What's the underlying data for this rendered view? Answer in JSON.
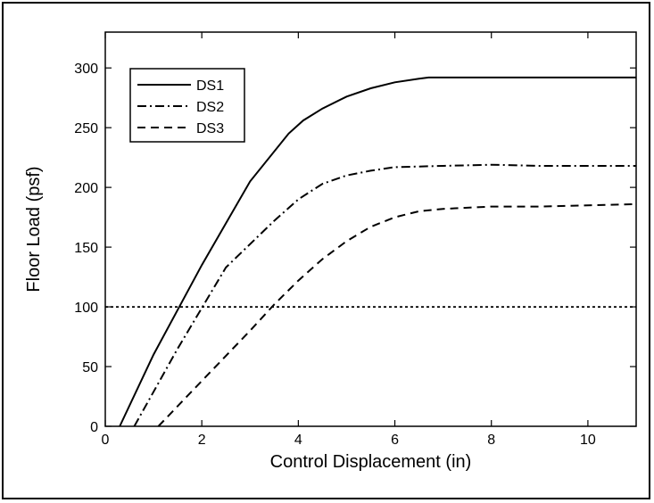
{
  "chart_data": {
    "type": "line",
    "title": "",
    "xlabel": "Control Displacement (in)",
    "ylabel": "Floor Load (psf)",
    "xlim": [
      0,
      11
    ],
    "ylim": [
      0,
      330
    ],
    "xticks": [
      0,
      2,
      4,
      6,
      8,
      10
    ],
    "yticks": [
      0,
      50,
      100,
      150,
      200,
      250,
      300
    ],
    "grid": false,
    "legend_position": "top-left",
    "series": [
      {
        "name": "DS1",
        "style": "solid",
        "color": "#000000",
        "x": [
          0.3,
          1.0,
          2.0,
          3.0,
          3.8,
          4.1,
          4.5,
          5.0,
          5.5,
          6.0,
          6.5,
          6.7,
          11.0
        ],
        "y": [
          0,
          60,
          135,
          205,
          245,
          256,
          266,
          276,
          283,
          288,
          291,
          292,
          292
        ]
      },
      {
        "name": "DS2",
        "style": "dash-dot",
        "color": "#000000",
        "x": [
          0.6,
          1.5,
          2.5,
          3.5,
          4.0,
          4.5,
          5.0,
          5.5,
          6.0,
          7.0,
          8.0,
          9.0,
          11.0
        ],
        "y": [
          0,
          65,
          133,
          172,
          190,
          203,
          210,
          214,
          217,
          218,
          219,
          218,
          218
        ]
      },
      {
        "name": "DS3",
        "style": "dashed",
        "color": "#000000",
        "x": [
          1.1,
          2.0,
          3.0,
          3.5,
          4.0,
          4.5,
          5.0,
          5.5,
          6.0,
          6.5,
          7.0,
          8.0,
          9.0,
          10.0,
          11.0
        ],
        "y": [
          0,
          38,
          80,
          102,
          122,
          140,
          155,
          167,
          175,
          180,
          182,
          184,
          184,
          185,
          186
        ]
      },
      {
        "name": "",
        "style": "dotted",
        "color": "#000000",
        "x": [
          0,
          11
        ],
        "y": [
          100,
          100
        ]
      }
    ]
  }
}
